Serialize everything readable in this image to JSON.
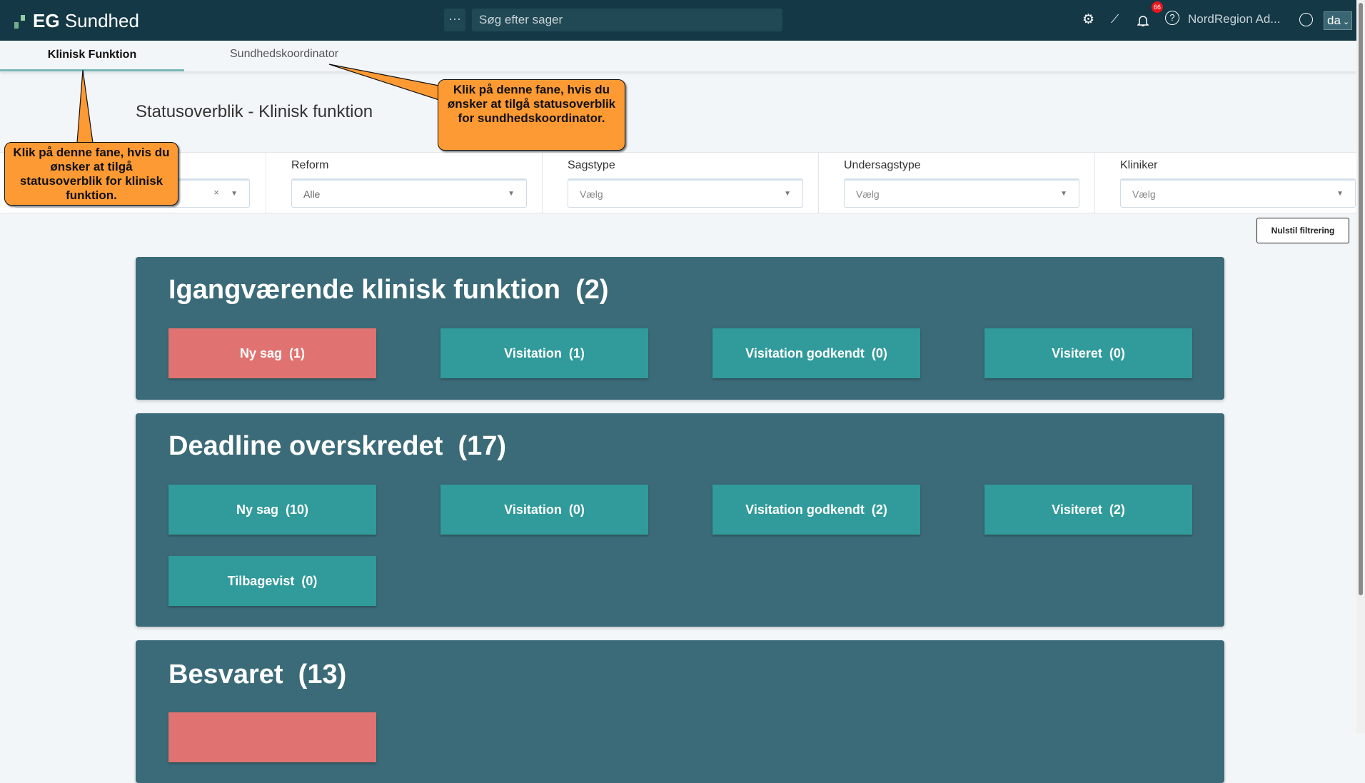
{
  "header": {
    "app_name_bold": "EG",
    "app_name": "Sundhed",
    "more_label": "···",
    "search_placeholder": "Søg efter sager",
    "notification_count": "66",
    "user_name": "NordRegion Ad...",
    "language": "da"
  },
  "tabs": [
    {
      "label": "Klinisk Funktion",
      "active": true
    },
    {
      "label": "Sundhedskoordinator",
      "active": false
    }
  ],
  "page_title": "Statusoverblik - Klinisk funktion",
  "filters": [
    {
      "label": "",
      "value": "",
      "clearable": true
    },
    {
      "label": "Reform",
      "value": "Alle"
    },
    {
      "label": "Sagstype",
      "value": "Vælg"
    },
    {
      "label": "Undersagstype",
      "value": "Vælg"
    },
    {
      "label": "Kliniker",
      "value": "Vælg"
    }
  ],
  "reset_label": "Nulstil filtrering",
  "panels": [
    {
      "title": "Igangværende klinisk funktion  (2)",
      "buttons": [
        "Ny sag  (1)",
        "Visitation  (1)",
        "Visitation godkendt  (0)",
        "Visiteret  (0)"
      ]
    },
    {
      "title": "Deadline overskredet  (17)",
      "buttons": [
        "Ny sag  (10)",
        "Visitation  (0)",
        "Visitation godkendt  (2)",
        "Visiteret  (2)",
        "Tilbagevist  (0)"
      ]
    },
    {
      "title": "Besvaret  (13)",
      "buttons": [
        ""
      ]
    }
  ],
  "callouts": {
    "klinisk": "Klik på denne fane, hvis du ønsker at tilgå statusoverblik for klinisk funktion.",
    "koordinator": "Klik på denne fane, hvis du ønsker at tilgå statusoverblik for sundhedskoordinator."
  },
  "colors": {
    "header": "#143846",
    "panel": "#3b6b78",
    "button": "#319a9a",
    "button_alert": "#e07371",
    "callout": "#fe9a33"
  }
}
